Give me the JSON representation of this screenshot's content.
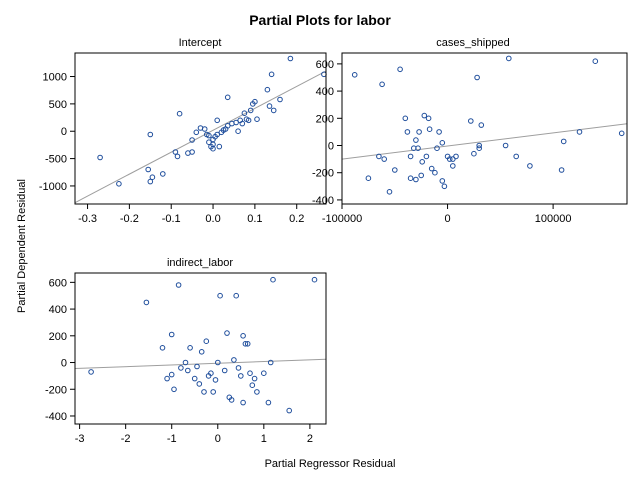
{
  "chart_data": {
    "title": "Partial Plots for labor",
    "ylabel": "Partial Dependent Residual",
    "xlabel": "Partial Regressor Residual",
    "colors": {
      "points": "#1f4e9c",
      "fit_line": "#9e9e9e"
    },
    "panels": [
      {
        "type": "scatter",
        "title": "Intercept",
        "xlim": [
          -0.33,
          0.27
        ],
        "ylim": [
          -1330,
          1430
        ],
        "xticks": [
          -0.3,
          -0.2,
          -0.1,
          0.0,
          0.1,
          0.2
        ],
        "xtick_labels": [
          "-0.3",
          "-0.2",
          "-0.1",
          "0.0",
          "0.1",
          "0.2"
        ],
        "yticks": [
          -1000,
          -500,
          0,
          500,
          1000
        ],
        "ytick_labels": [
          "-1000",
          "-500",
          "0",
          "500",
          "1000"
        ],
        "fit": {
          "x": [
            -0.33,
            0.27
          ],
          "y": [
            -1305,
            1100
          ]
        },
        "points": [
          [
            -0.27,
            -480
          ],
          [
            -0.225,
            -960
          ],
          [
            -0.15,
            -60
          ],
          [
            -0.15,
            -920
          ],
          [
            -0.145,
            -840
          ],
          [
            -0.155,
            -700
          ],
          [
            -0.12,
            -780
          ],
          [
            -0.09,
            -380
          ],
          [
            -0.085,
            -460
          ],
          [
            -0.08,
            320
          ],
          [
            -0.06,
            -400
          ],
          [
            -0.05,
            -380
          ],
          [
            -0.05,
            -160
          ],
          [
            -0.04,
            -20
          ],
          [
            -0.03,
            60
          ],
          [
            -0.02,
            40
          ],
          [
            -0.015,
            -60
          ],
          [
            -0.01,
            -200
          ],
          [
            -0.005,
            -280
          ],
          [
            -0.01,
            -80
          ],
          [
            0.0,
            -150
          ],
          [
            0.0,
            -240
          ],
          [
            0.0,
            -320
          ],
          [
            0.005,
            -100
          ],
          [
            0.01,
            -60
          ],
          [
            0.01,
            200
          ],
          [
            0.015,
            -280
          ],
          [
            0.02,
            -20
          ],
          [
            0.025,
            20
          ],
          [
            0.03,
            40
          ],
          [
            0.035,
            100
          ],
          [
            0.035,
            620
          ],
          [
            0.045,
            140
          ],
          [
            0.055,
            160
          ],
          [
            0.06,
            0
          ],
          [
            0.065,
            200
          ],
          [
            0.07,
            140
          ],
          [
            0.075,
            330
          ],
          [
            0.08,
            220
          ],
          [
            0.085,
            200
          ],
          [
            0.09,
            380
          ],
          [
            0.095,
            500
          ],
          [
            0.1,
            540
          ],
          [
            0.105,
            220
          ],
          [
            0.13,
            760
          ],
          [
            0.135,
            460
          ],
          [
            0.14,
            1040
          ],
          [
            0.145,
            380
          ],
          [
            0.16,
            580
          ],
          [
            0.185,
            1330
          ],
          [
            0.265,
            1040
          ]
        ]
      },
      {
        "type": "scatter",
        "title": "cases_shipped",
        "xlim": [
          -100000,
          170000
        ],
        "ylim": [
          -430,
          680
        ],
        "xticks": [
          -100000,
          0,
          100000
        ],
        "xtick_labels": [
          "-100000",
          "0",
          "100000"
        ],
        "yticks": [
          -400,
          -200,
          0,
          200,
          400,
          600
        ],
        "ytick_labels": [
          "-400",
          "-200",
          "0",
          "200",
          "400",
          "600"
        ],
        "fit": {
          "x": [
            -100000,
            170000
          ],
          "y": [
            -100,
            160
          ]
        },
        "points": [
          [
            -88000,
            520
          ],
          [
            -75000,
            -240
          ],
          [
            -65000,
            -80
          ],
          [
            -62000,
            450
          ],
          [
            -60000,
            -100
          ],
          [
            -55000,
            -340
          ],
          [
            -50000,
            -180
          ],
          [
            -45000,
            560
          ],
          [
            -40000,
            200
          ],
          [
            -38000,
            100
          ],
          [
            -35000,
            -240
          ],
          [
            -35000,
            -80
          ],
          [
            -32000,
            -20
          ],
          [
            -30000,
            40
          ],
          [
            -30000,
            -250
          ],
          [
            -28000,
            -20
          ],
          [
            -27000,
            100
          ],
          [
            -25000,
            -220
          ],
          [
            -24000,
            -120
          ],
          [
            -22000,
            220
          ],
          [
            -20000,
            -80
          ],
          [
            -18000,
            200
          ],
          [
            -17000,
            120
          ],
          [
            -15000,
            -170
          ],
          [
            -12000,
            -200
          ],
          [
            -10000,
            -20
          ],
          [
            -8000,
            100
          ],
          [
            -5000,
            -260
          ],
          [
            -5000,
            20
          ],
          [
            -3000,
            -300
          ],
          [
            0,
            -80
          ],
          [
            2000,
            -100
          ],
          [
            5000,
            -100
          ],
          [
            5000,
            -150
          ],
          [
            8000,
            -80
          ],
          [
            22000,
            180
          ],
          [
            25000,
            -60
          ],
          [
            28000,
            500
          ],
          [
            30000,
            0
          ],
          [
            30000,
            -20
          ],
          [
            32000,
            150
          ],
          [
            55000,
            0
          ],
          [
            58000,
            640
          ],
          [
            65000,
            -80
          ],
          [
            78000,
            -150
          ],
          [
            108000,
            -180
          ],
          [
            110000,
            30
          ],
          [
            125000,
            100
          ],
          [
            140000,
            620
          ],
          [
            165000,
            90
          ]
        ]
      },
      {
        "type": "scatter",
        "title": "indirect_labor",
        "xlim": [
          -3.1,
          2.35
        ],
        "ylim": [
          -460,
          670
        ],
        "xticks": [
          -3,
          -2,
          -1,
          0,
          1,
          2
        ],
        "xtick_labels": [
          "-3",
          "-2",
          "-1",
          "0",
          "1",
          "2"
        ],
        "yticks": [
          -400,
          -200,
          0,
          200,
          400,
          600
        ],
        "ytick_labels": [
          "-400",
          "-200",
          "0",
          "200",
          "400",
          "600"
        ],
        "fit": {
          "x": [
            -3.1,
            2.35
          ],
          "y": [
            -45,
            25
          ]
        },
        "points": [
          [
            -2.75,
            -70
          ],
          [
            -1.55,
            450
          ],
          [
            -1.2,
            110
          ],
          [
            -1.1,
            -120
          ],
          [
            -1.0,
            -90
          ],
          [
            -1.0,
            210
          ],
          [
            -0.95,
            -200
          ],
          [
            -0.85,
            580
          ],
          [
            -0.8,
            -40
          ],
          [
            -0.7,
            0
          ],
          [
            -0.65,
            -60
          ],
          [
            -0.6,
            110
          ],
          [
            -0.5,
            -120
          ],
          [
            -0.45,
            -30
          ],
          [
            -0.4,
            -160
          ],
          [
            -0.35,
            80
          ],
          [
            -0.3,
            -220
          ],
          [
            -0.25,
            160
          ],
          [
            -0.2,
            -100
          ],
          [
            -0.15,
            -80
          ],
          [
            -0.1,
            -220
          ],
          [
            -0.05,
            -130
          ],
          [
            0.0,
            0
          ],
          [
            0.05,
            500
          ],
          [
            0.15,
            -60
          ],
          [
            0.2,
            220
          ],
          [
            0.25,
            -260
          ],
          [
            0.3,
            -280
          ],
          [
            0.35,
            20
          ],
          [
            0.4,
            500
          ],
          [
            0.45,
            -40
          ],
          [
            0.5,
            -100
          ],
          [
            0.55,
            200
          ],
          [
            0.55,
            -300
          ],
          [
            0.6,
            140
          ],
          [
            0.65,
            140
          ],
          [
            0.7,
            -80
          ],
          [
            0.75,
            -170
          ],
          [
            0.8,
            -120
          ],
          [
            0.85,
            -220
          ],
          [
            1.0,
            -80
          ],
          [
            1.1,
            -300
          ],
          [
            1.15,
            0
          ],
          [
            1.2,
            620
          ],
          [
            1.55,
            -360
          ],
          [
            2.1,
            620
          ]
        ]
      }
    ]
  }
}
